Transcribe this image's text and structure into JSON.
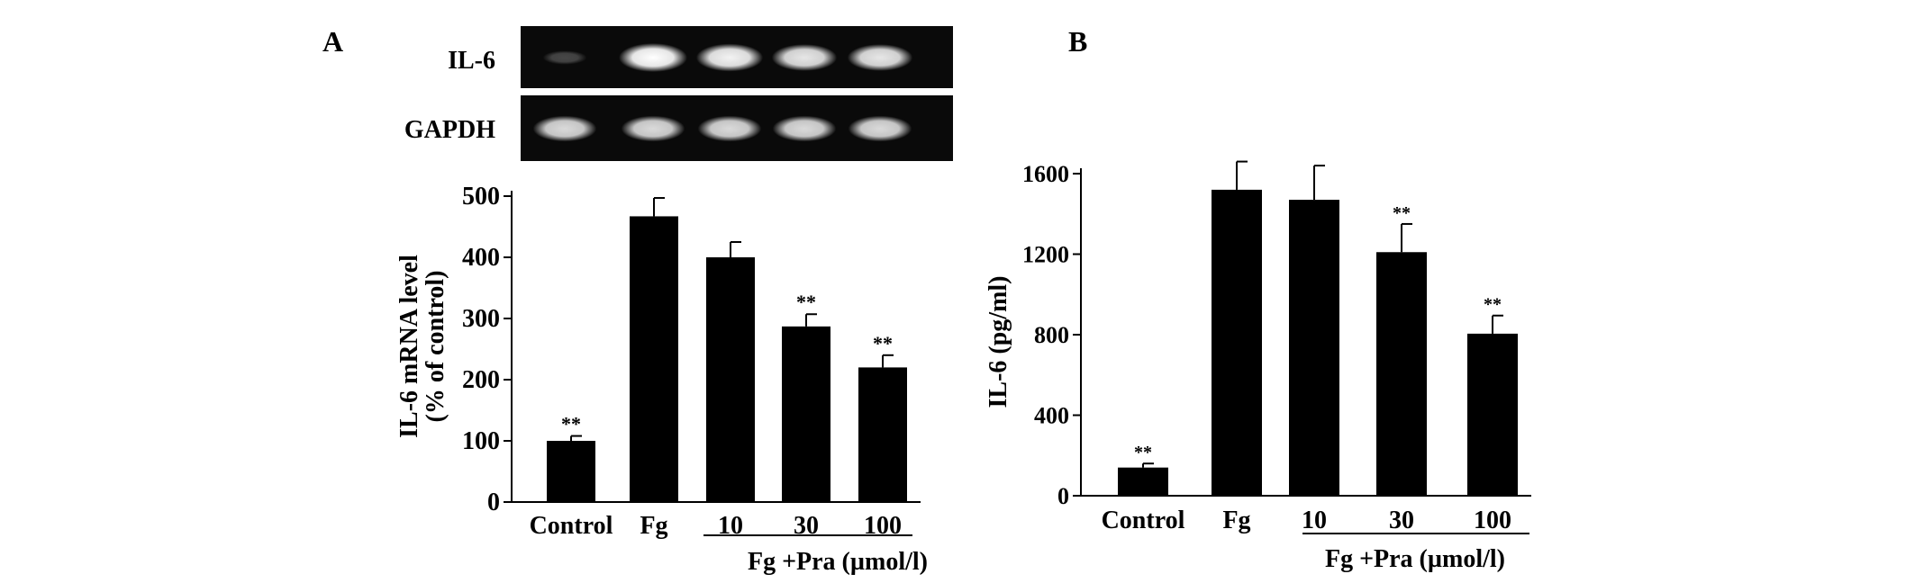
{
  "panel_labels": {
    "a": "A",
    "b": "B"
  },
  "blot": {
    "rows": [
      "IL-6",
      "GAPDH"
    ],
    "il6_intensity": [
      0.25,
      1.0,
      0.95,
      0.9,
      0.9
    ],
    "gapdh_intensity": [
      0.85,
      0.85,
      0.85,
      0.85,
      0.85
    ]
  },
  "group_label": "Fg +Pra  (µmol/l)",
  "significance_marker": "**",
  "chart_data": [
    {
      "type": "bar",
      "categories": [
        "Control",
        "Fg",
        "10",
        "30",
        "100"
      ],
      "values": [
        100,
        467,
        400,
        287,
        220
      ],
      "errors": [
        8,
        30,
        25,
        20,
        20
      ],
      "significance": [
        "**",
        "",
        "",
        "**",
        "**"
      ],
      "ylabel_line1": "IL-6 mRNA level",
      "ylabel_line2": "(% of control)",
      "yticks": [
        0,
        100,
        200,
        300,
        400,
        500
      ],
      "ylim": [
        0,
        500
      ],
      "grouped_categories": [
        "10",
        "30",
        "100"
      ],
      "group_label": "Fg +Pra  (µmol/l)",
      "colors": {
        "bar": "#000000"
      }
    },
    {
      "type": "bar",
      "categories": [
        "Control",
        "Fg",
        "10",
        "30",
        "100"
      ],
      "values": [
        140,
        1520,
        1470,
        1210,
        805
      ],
      "errors": [
        20,
        140,
        170,
        140,
        90
      ],
      "significance": [
        "**",
        "",
        "",
        "**",
        "**"
      ],
      "ylabel": "IL-6  (pg/ml)",
      "yticks": [
        0,
        400,
        800,
        1200,
        1600
      ],
      "ylim": [
        0,
        1600
      ],
      "grouped_categories": [
        "10",
        "30",
        "100"
      ],
      "group_label": "Fg +Pra  (µmol/l)",
      "colors": {
        "bar": "#000000"
      }
    }
  ]
}
